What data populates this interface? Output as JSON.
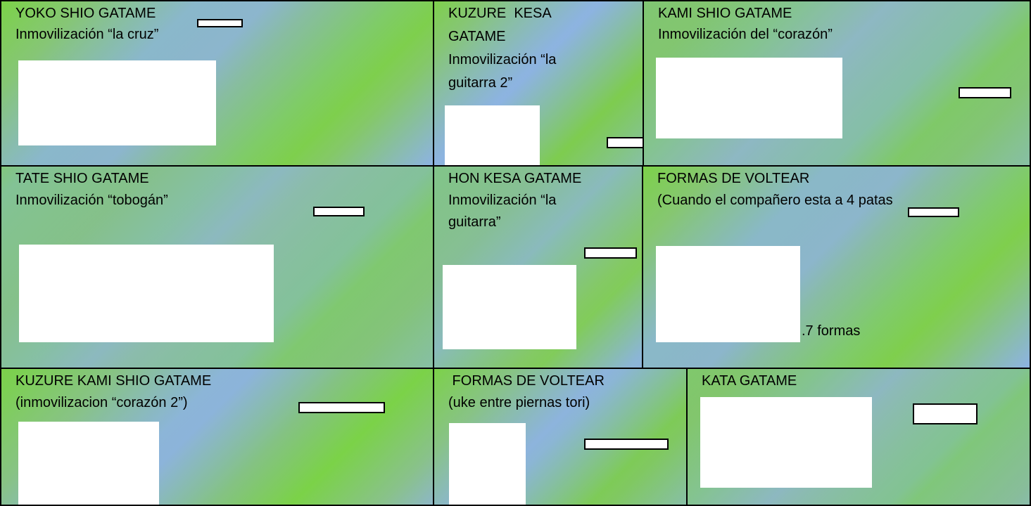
{
  "cells": [
    {
      "lines": [
        "YOKO SHIO GATAME",
        "Inmovilización “la cruz”"
      ]
    },
    {
      "lines": [
        "KUZURE  KESA",
        "GATAME",
        "Inmovilización “la",
        "guitarra 2”"
      ]
    },
    {
      "lines": [
        "KAMI SHIO GATAME",
        "Inmovilización del “corazón”"
      ]
    },
    {
      "lines": [
        "TATE SHIO GATAME",
        "Inmovilización “tobogán”"
      ]
    },
    {
      "lines": [
        "HON KESA GATAME",
        "Inmovilización “la",
        "guitarra”"
      ]
    },
    {
      "lines": [
        "FORMAS DE VOLTEAR",
        "(Cuando el compañero esta a 4 patas"
      ],
      "note": ".7 formas"
    },
    {
      "lines": [
        "KUZURE KAMI SHIO GATAME",
        "(inmovilizacion “corazón 2”)"
      ]
    },
    {
      "lines": [
        " FORMAS DE VOLTEAR",
        "(uke entre piernas tori)"
      ]
    },
    {
      "lines": [
        "KATA GATAME"
      ]
    }
  ]
}
